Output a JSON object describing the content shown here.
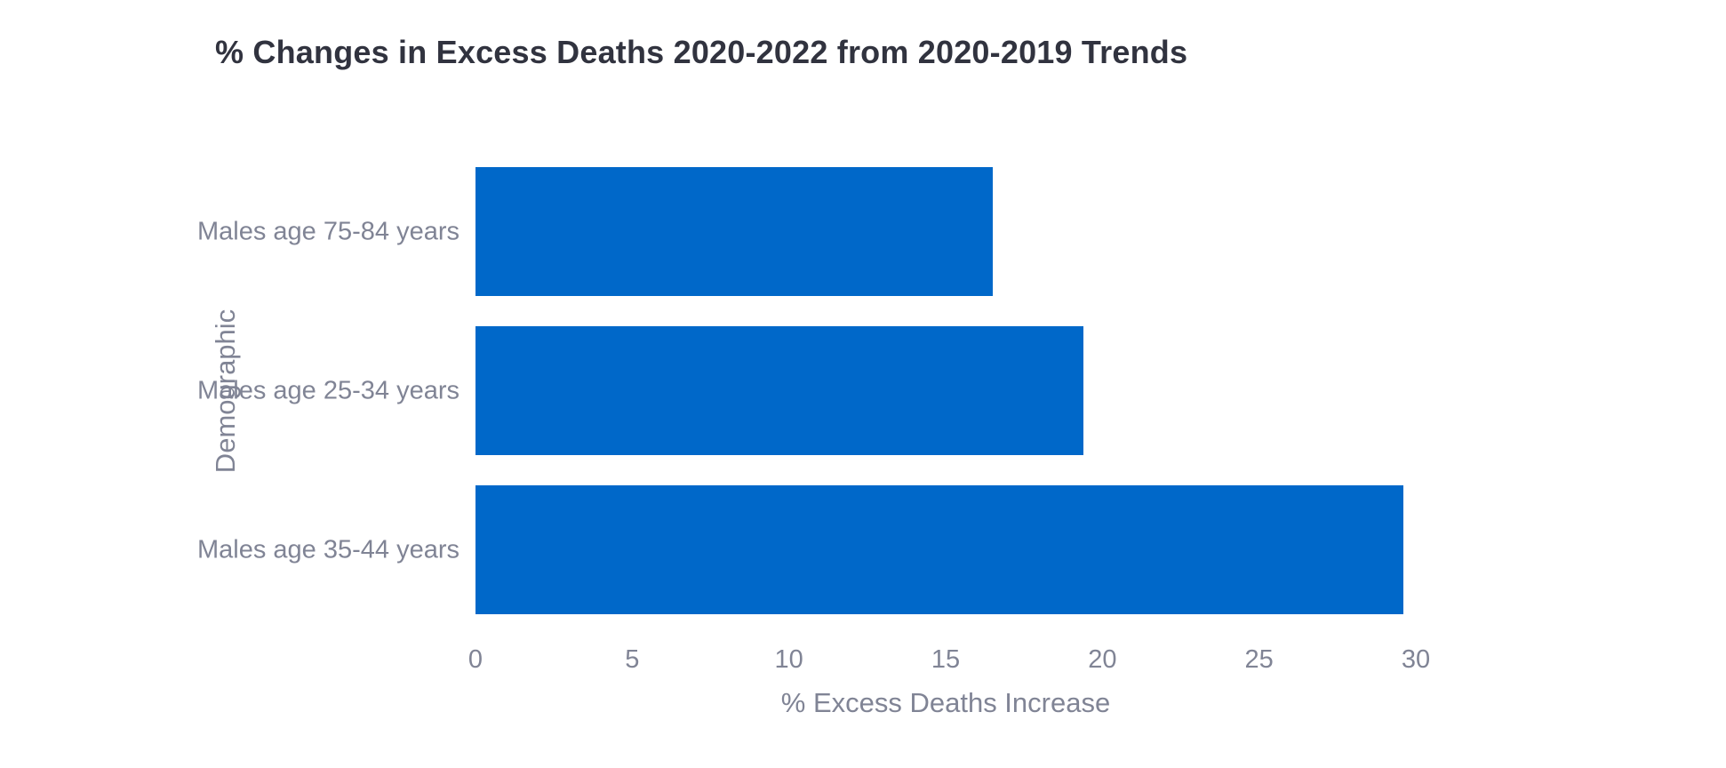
{
  "chart_data": {
    "type": "bar",
    "orientation": "horizontal",
    "title": "% Changes in Excess Deaths 2020-2022 from 2020-2019 Trends",
    "categories": [
      "Males age 75-84 years",
      "Males age 25-34 years",
      "Males age 35-44 years"
    ],
    "values": [
      16.5,
      19.4,
      29.6
    ],
    "xlabel": "% Excess Deaths Increase",
    "ylabel": "Demographic",
    "xlim": [
      0,
      30
    ],
    "xticks": [
      0,
      5,
      10,
      15,
      20,
      25,
      30
    ],
    "grid": false,
    "legend": "none",
    "colors": {
      "bar": "#0068c9",
      "title_text": "#31333f",
      "axis_text": "#808495",
      "background": "#ffffff"
    }
  }
}
